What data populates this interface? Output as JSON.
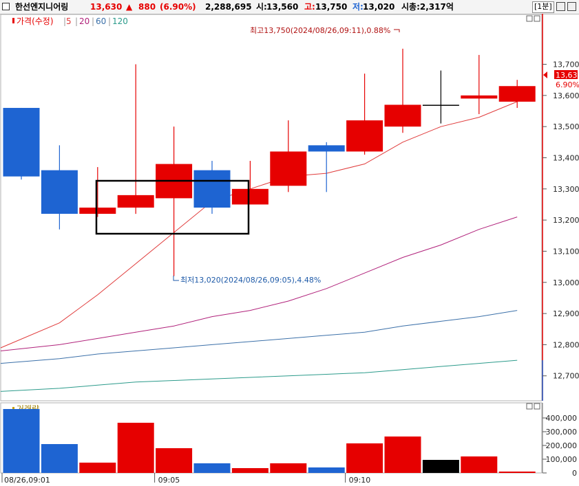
{
  "header": {
    "stock_name": "한선엔지니어링",
    "price": "13,630",
    "change_arrow": "▲",
    "change": "880",
    "change_pct": "(6.90%)",
    "volume": "2,288,695",
    "open_label": "시:",
    "open": "13,560",
    "high_label": "고:",
    "high": "13,750",
    "low_label": "저:",
    "low": "13,020",
    "mktcap": "시총:2,317억",
    "period": "[1분]"
  },
  "legend": {
    "price_label": "가격(수정)",
    "ma5": "5",
    "ma20": "20",
    "ma60": "60",
    "ma120": "120",
    "volume_label": "거래량"
  },
  "annotations": {
    "high": "최고13,750(2024/08/26,09:11),0.88%",
    "low": "최저13,020(2024/08/26,09:05),4.48%"
  },
  "price_tag": {
    "price": "13,630",
    "pct": "6.90%"
  },
  "colors": {
    "up": "#e60000",
    "down": "#1e64d2",
    "neutral": "#000000",
    "ma5": "#e03a3a",
    "ma20": "#b0207a",
    "ma60": "#3a6fa8",
    "ma120": "#2a9a8a"
  },
  "chart_data": [
    {
      "type": "candlestick",
      "title": "한선엔지니어링 1분",
      "x_ticks": [
        "08/26,09:01",
        "09:05",
        "09:10"
      ],
      "x": [
        "09:01",
        "09:02",
        "09:03",
        "09:04",
        "09:05",
        "09:06",
        "09:07",
        "09:08",
        "09:09",
        "09:10",
        "09:11",
        "09:12",
        "09:13",
        "09:14"
      ],
      "open": [
        13560,
        13360,
        13240,
        13240,
        13270,
        13360,
        13250,
        13310,
        13440,
        13420,
        13500,
        13570,
        13590,
        13580
      ],
      "high": [
        13560,
        13440,
        13370,
        13700,
        13500,
        13390,
        13390,
        13520,
        13450,
        13670,
        13750,
        13680,
        13730,
        13650
      ],
      "close": [
        13340,
        13220,
        13220,
        13280,
        13380,
        13240,
        13300,
        13420,
        13420,
        13520,
        13570,
        13570,
        13600,
        13630
      ],
      "low": [
        13330,
        13170,
        13210,
        13220,
        13020,
        13220,
        13250,
        13290,
        13290,
        13410,
        13480,
        13510,
        13540,
        13560
      ],
      "direction": [
        "down",
        "down",
        "up",
        "up",
        "up",
        "down",
        "up",
        "up",
        "down",
        "up",
        "up",
        "neutral",
        "up",
        "up"
      ],
      "moving_averages": [
        {
          "name": "5",
          "values": [
            12790,
            12870,
            12960,
            13060,
            13160,
            13260,
            13300,
            13340,
            13350,
            13380,
            13450,
            13500,
            13530,
            13580
          ]
        },
        {
          "name": "20",
          "values": [
            12780,
            12800,
            12820,
            12840,
            12860,
            12890,
            12910,
            12940,
            12980,
            13030,
            13080,
            13120,
            13170,
            13210
          ]
        },
        {
          "name": "60",
          "values": [
            12740,
            12755,
            12770,
            12780,
            12790,
            12800,
            12810,
            12820,
            12830,
            12840,
            12860,
            12875,
            12890,
            12910
          ]
        },
        {
          "name": "120",
          "values": [
            12650,
            12660,
            12670,
            12680,
            12685,
            12690,
            12695,
            12700,
            12705,
            12710,
            12720,
            12730,
            12740,
            12750
          ]
        }
      ],
      "y_ticks": [
        12700,
        12800,
        12900,
        13000,
        13100,
        13200,
        13300,
        13400,
        13500,
        13600,
        13700
      ],
      "y_tick_labels": [
        "12,700",
        "12,800",
        "12,900",
        "13,000",
        "13,100",
        "13,200",
        "13,300",
        "13,400",
        "13,500",
        "13,600",
        "13,700"
      ],
      "ylim": [
        12620,
        13860
      ]
    },
    {
      "type": "bar",
      "title": "거래량",
      "x": [
        "09:01",
        "09:02",
        "09:03",
        "09:04",
        "09:05",
        "09:06",
        "09:07",
        "09:08",
        "09:09",
        "09:10",
        "09:11",
        "09:12",
        "09:13",
        "09:14"
      ],
      "values": [
        465000,
        210000,
        75000,
        365000,
        180000,
        70000,
        35000,
        70000,
        40000,
        215000,
        265000,
        95000,
        120000,
        10000
      ],
      "direction": [
        "down",
        "down",
        "up",
        "up",
        "up",
        "down",
        "up",
        "up",
        "down",
        "up",
        "up",
        "neutral",
        "up",
        "up"
      ],
      "y_ticks": [
        0,
        100000,
        200000,
        300000,
        400000
      ],
      "y_tick_labels": [
        "0",
        "100,000",
        "200,000",
        "300,000",
        "400,000"
      ],
      "ylim": [
        0,
        480000
      ]
    }
  ]
}
